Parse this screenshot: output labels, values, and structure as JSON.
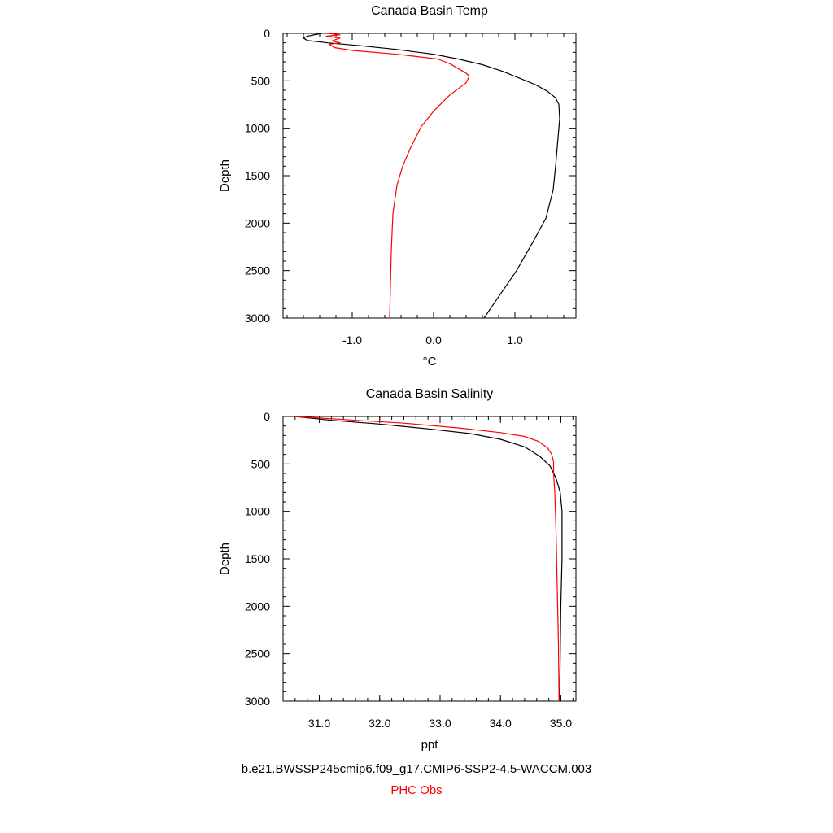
{
  "colors": {
    "model": "#000000",
    "obs": "#ff0000"
  },
  "captions": {
    "model": "b.e21.BWSSP245cmip6.f09_g17.CMIP6-SSP2-4.5-WACCM.003",
    "obs": "PHC Obs"
  },
  "chart_data": [
    {
      "type": "line",
      "title": "Canada Basin Temp",
      "xlabel": "°C",
      "ylabel": "Depth",
      "xlim": [
        -1.85,
        1.75
      ],
      "ylim": [
        3000,
        0
      ],
      "y_inverted": true,
      "xticks": [
        -1.0,
        0.0,
        1.0
      ],
      "xtick_labels": [
        "-1.0",
        "0.0",
        "1.0"
      ],
      "yticks": [
        0,
        500,
        1000,
        1500,
        2000,
        2500,
        3000
      ],
      "ytick_labels": [
        "0",
        "500",
        "1000",
        "1500",
        "2000",
        "2500",
        "3000"
      ],
      "series": [
        {
          "name": "b.e21.BWSSP245cmip6.f09_g17.CMIP6-SSP2-4.5-WACCM.003",
          "color": "#000000",
          "points": [
            [
              -1.38,
              0
            ],
            [
              -1.55,
              30
            ],
            [
              -1.6,
              50
            ],
            [
              -1.55,
              75
            ],
            [
              -1.3,
              100
            ],
            [
              -0.9,
              130
            ],
            [
              -0.45,
              170
            ],
            [
              0.0,
              220
            ],
            [
              0.3,
              270
            ],
            [
              0.6,
              330
            ],
            [
              0.85,
              400
            ],
            [
              1.05,
              470
            ],
            [
              1.25,
              540
            ],
            [
              1.4,
              610
            ],
            [
              1.5,
              680
            ],
            [
              1.54,
              750
            ],
            [
              1.55,
              900
            ],
            [
              1.53,
              1100
            ],
            [
              1.5,
              1400
            ],
            [
              1.47,
              1650
            ],
            [
              1.38,
              1950
            ],
            [
              1.22,
              2200
            ],
            [
              1.02,
              2500
            ],
            [
              0.82,
              2750
            ],
            [
              0.62,
              3000
            ]
          ]
        },
        {
          "name": "PHC Obs",
          "color": "#ff0000",
          "points": [
            [
              -1.3,
              0
            ],
            [
              -1.15,
              15
            ],
            [
              -1.32,
              30
            ],
            [
              -1.15,
              50
            ],
            [
              -1.25,
              80
            ],
            [
              -1.15,
              100
            ],
            [
              -1.28,
              115
            ],
            [
              -1.22,
              150
            ],
            [
              -1.0,
              180
            ],
            [
              -0.45,
              220
            ],
            [
              0.05,
              270
            ],
            [
              0.2,
              320
            ],
            [
              0.32,
              380
            ],
            [
              0.4,
              420
            ],
            [
              0.44,
              450
            ],
            [
              0.4,
              520
            ],
            [
              0.2,
              650
            ],
            [
              0.0,
              820
            ],
            [
              -0.15,
              980
            ],
            [
              -0.28,
              1200
            ],
            [
              -0.38,
              1400
            ],
            [
              -0.45,
              1600
            ],
            [
              -0.5,
              1900
            ],
            [
              -0.52,
              2300
            ],
            [
              -0.54,
              3000
            ]
          ]
        }
      ]
    },
    {
      "type": "line",
      "title": "Canada Basin Salinity",
      "xlabel": "ppt",
      "ylabel": "Depth",
      "xlim": [
        30.4,
        35.25
      ],
      "ylim": [
        3000,
        0
      ],
      "y_inverted": true,
      "xticks": [
        31.0,
        32.0,
        33.0,
        34.0,
        35.0
      ],
      "xtick_labels": [
        "31.0",
        "32.0",
        "33.0",
        "34.0",
        "35.0"
      ],
      "yticks": [
        0,
        500,
        1000,
        1500,
        2000,
        2500,
        3000
      ],
      "ytick_labels": [
        "0",
        "500",
        "1000",
        "1500",
        "2000",
        "2500",
        "3000"
      ],
      "series": [
        {
          "name": "b.e21.BWSSP245cmip6.f09_g17.CMIP6-SSP2-4.5-WACCM.003",
          "color": "#000000",
          "points": [
            [
              30.6,
              0
            ],
            [
              31.2,
              40
            ],
            [
              32.0,
              80
            ],
            [
              32.8,
              130
            ],
            [
              33.5,
              180
            ],
            [
              34.0,
              240
            ],
            [
              34.4,
              320
            ],
            [
              34.65,
              420
            ],
            [
              34.82,
              520
            ],
            [
              34.92,
              650
            ],
            [
              34.99,
              800
            ],
            [
              35.02,
              1000
            ],
            [
              35.02,
              1500
            ],
            [
              35.0,
              2000
            ],
            [
              34.99,
              2500
            ],
            [
              34.98,
              3000
            ]
          ]
        },
        {
          "name": "PHC Obs",
          "color": "#ff0000",
          "points": [
            [
              30.6,
              0
            ],
            [
              31.6,
              40
            ],
            [
              32.4,
              70
            ],
            [
              33.3,
              120
            ],
            [
              34.0,
              170
            ],
            [
              34.4,
              210
            ],
            [
              34.62,
              260
            ],
            [
              34.78,
              330
            ],
            [
              34.85,
              400
            ],
            [
              34.88,
              480
            ],
            [
              34.88,
              600
            ],
            [
              34.9,
              800
            ],
            [
              34.92,
              1200
            ],
            [
              34.94,
              1800
            ],
            [
              34.96,
              2400
            ],
            [
              34.97,
              3000
            ]
          ]
        }
      ]
    }
  ]
}
